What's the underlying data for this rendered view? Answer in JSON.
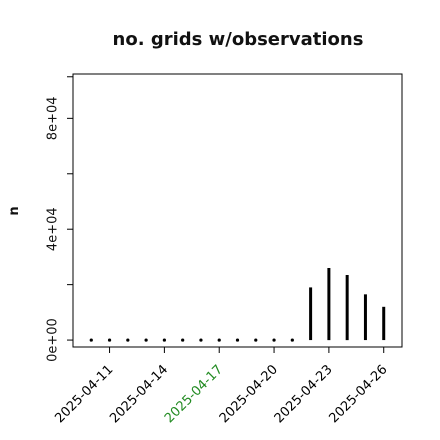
{
  "chart_data": {
    "type": "bar",
    "title": "no. grids w/observations",
    "xlabel": "",
    "ylabel": "n",
    "ylim": [
      -2500,
      96000
    ],
    "x_domain": [
      "2025-04-09",
      "2025-04-27"
    ],
    "y_ticks": [
      0,
      20000,
      40000,
      60000,
      80000,
      95000
    ],
    "y_tick_labels": [
      "0e+00",
      "4e+04",
      "8e+04"
    ],
    "y_tick_label_values": [
      0,
      40000,
      80000
    ],
    "x_ticks": [
      "2025-04-11",
      "2025-04-14",
      "2025-04-17",
      "2025-04-20",
      "2025-04-23",
      "2025-04-26"
    ],
    "x_tick_labels": [
      {
        "label": "2025-04-11",
        "color": "#000000"
      },
      {
        "label": "2025-04-14",
        "color": "#000000"
      },
      {
        "label": "2025-04-17",
        "color": "#228b22"
      },
      {
        "label": "2025-04-20",
        "color": "#000000"
      },
      {
        "label": "2025-04-23",
        "color": "#000000"
      },
      {
        "label": "2025-04-26",
        "color": "#000000"
      }
    ],
    "x": [
      "2025-04-10",
      "2025-04-11",
      "2025-04-12",
      "2025-04-13",
      "2025-04-14",
      "2025-04-15",
      "2025-04-16",
      "2025-04-17",
      "2025-04-18",
      "2025-04-19",
      "2025-04-20",
      "2025-04-21",
      "2025-04-22",
      "2025-04-23",
      "2025-04-24",
      "2025-04-25",
      "2025-04-26"
    ],
    "values": [
      0,
      0,
      0,
      0,
      0,
      0,
      0,
      0,
      0,
      0,
      0,
      0,
      19000,
      26000,
      23500,
      16500,
      12000
    ],
    "bar_color": "#000000",
    "grid": false,
    "box": true
  }
}
